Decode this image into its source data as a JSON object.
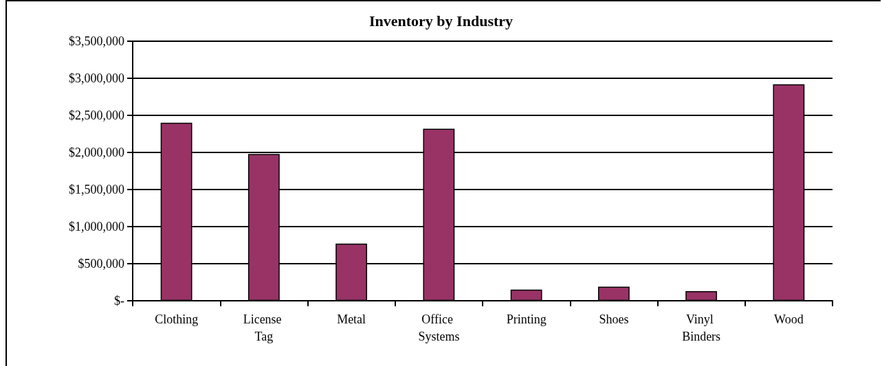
{
  "chart_data": {
    "type": "bar",
    "title": "Inventory by Industry",
    "categories": [
      "Clothing",
      "License Tag",
      "Metal",
      "Office Systems",
      "Printing",
      "Shoes",
      "Vinyl Binders",
      "Wood"
    ],
    "values": [
      2400000,
      1980000,
      770000,
      2320000,
      150000,
      190000,
      130000,
      2920000
    ],
    "color": "#993366",
    "ylim": [
      0,
      3500000
    ],
    "yticks": [
      {
        "value": 0,
        "label": "$-"
      },
      {
        "value": 500000,
        "label": "$500,000"
      },
      {
        "value": 1000000,
        "label": "$1,000,000"
      },
      {
        "value": 1500000,
        "label": "$1,500,000"
      },
      {
        "value": 2000000,
        "label": "$2,000,000"
      },
      {
        "value": 2500000,
        "label": "$2,500,000"
      },
      {
        "value": 3000000,
        "label": "$3,000,000"
      },
      {
        "value": 3500000,
        "label": "$3,500,000"
      }
    ],
    "grid": "y"
  }
}
